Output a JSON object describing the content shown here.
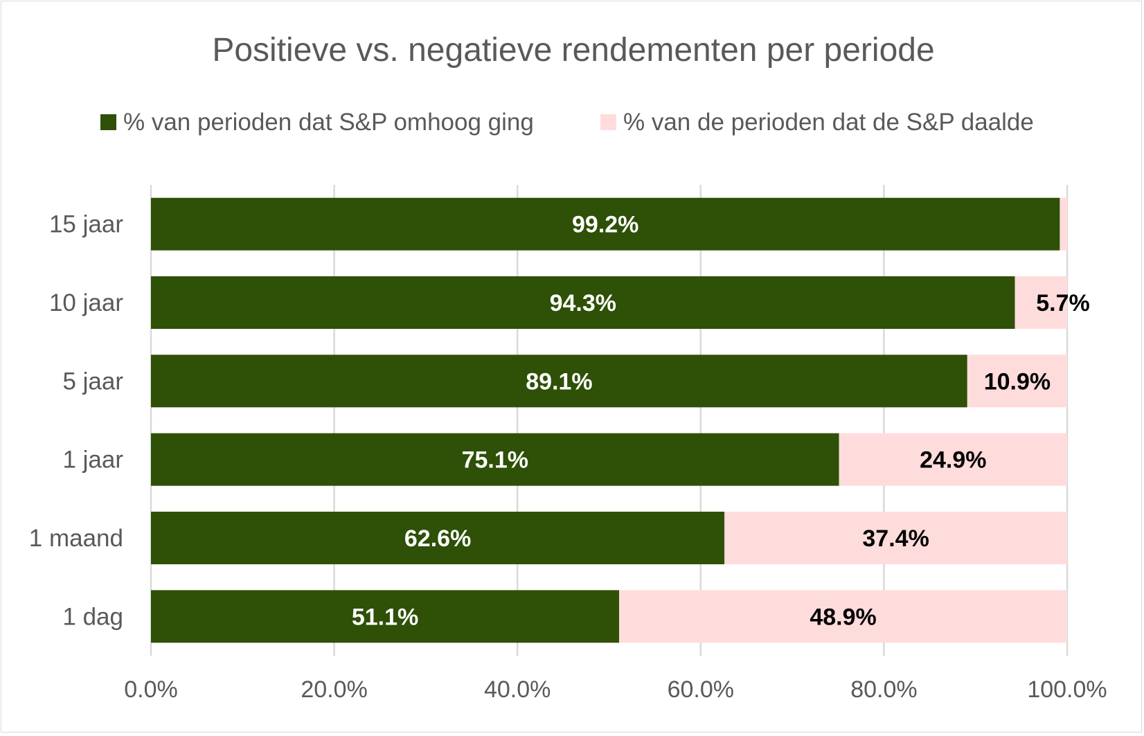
{
  "chart_data": {
    "type": "bar",
    "orientation": "horizontal",
    "stacked": true,
    "title": "Positieve vs. negatieve rendementen per periode",
    "categories": [
      "15 jaar",
      "10 jaar",
      "5 jaar",
      "1 jaar",
      "1 maand",
      "1 dag"
    ],
    "series": [
      {
        "name": "% van perioden dat S&P omhoog ging",
        "color": "#2e5007",
        "values": [
          99.2,
          94.3,
          89.1,
          75.1,
          62.6,
          51.1
        ],
        "labels": [
          "99.2%",
          "94.3%",
          "89.1%",
          "75.1%",
          "62.6%",
          "51.1%"
        ]
      },
      {
        "name": "% van de perioden dat de S&P daalde",
        "color": "#ffdcdc",
        "values": [
          0.8,
          5.7,
          10.9,
          24.9,
          37.4,
          48.9
        ],
        "labels": [
          "",
          "5.7%",
          "10.9%",
          "24.9%",
          "37.4%",
          "48.9%"
        ]
      }
    ],
    "xlim": [
      0,
      100
    ],
    "xticks": [
      "0.0%",
      "20.0%",
      "40.0%",
      "60.0%",
      "80.0%",
      "100.0%"
    ],
    "xlabel": "",
    "ylabel": "",
    "grid": true,
    "legend": "top-center"
  }
}
